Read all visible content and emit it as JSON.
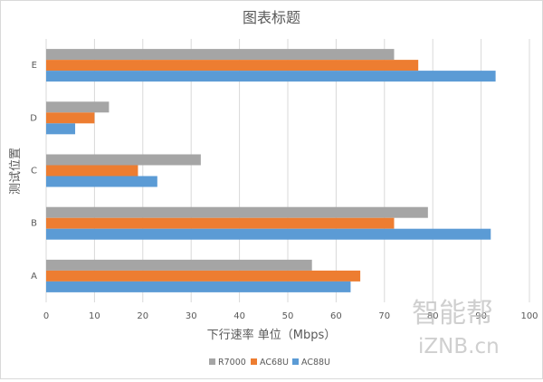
{
  "colors": {
    "R7000": "#a5a5a5",
    "AC68U": "#ed7d31",
    "AC88U": "#5b9bd5",
    "grid": "#d9d9d9",
    "axis": "#d9d9d9",
    "text": "#595959"
  },
  "watermark": {
    "line1": "智能帮",
    "line2": "iZNB.cn"
  },
  "chart_data": {
    "type": "bar",
    "orientation": "horizontal",
    "title": "图表标题",
    "xlabel": "下行速率 单位（Mbps）",
    "ylabel": "测试位置",
    "categories": [
      "A",
      "B",
      "C",
      "D",
      "E"
    ],
    "xlim": [
      0,
      100
    ],
    "xticks": [
      0,
      10,
      20,
      30,
      40,
      50,
      60,
      70,
      80,
      90,
      100
    ],
    "grid": true,
    "legend_position": "bottom",
    "series": [
      {
        "name": "R7000",
        "values": [
          55,
          79,
          32,
          13,
          72
        ]
      },
      {
        "name": "AC68U",
        "values": [
          65,
          72,
          19,
          10,
          77
        ]
      },
      {
        "name": "AC88U",
        "values": [
          63,
          92,
          23,
          6,
          93
        ]
      }
    ]
  }
}
